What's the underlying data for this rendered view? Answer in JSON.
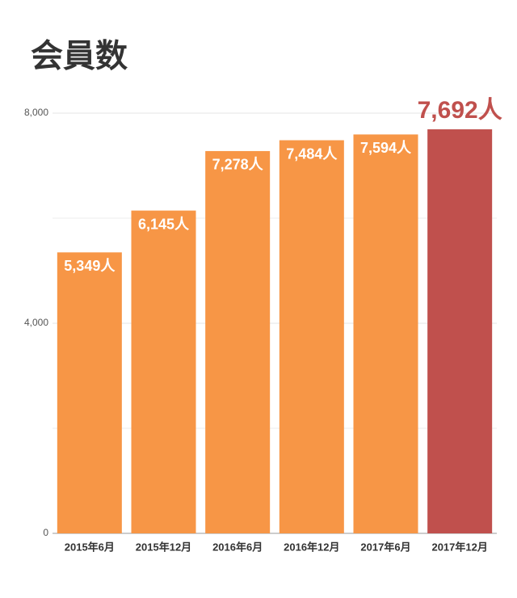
{
  "chart_data": {
    "type": "bar",
    "title": "会員数",
    "categories": [
      "2015年6月",
      "2015年12月",
      "2016年6月",
      "2016年12月",
      "2017年6月",
      "2017年12月"
    ],
    "values": [
      5349,
      6145,
      7278,
      7484,
      7594,
      7692
    ],
    "value_labels": [
      "5,349人",
      "6,145人",
      "7,278人",
      "7,484人",
      "7,594人",
      "7,692人"
    ],
    "color": "#f79646",
    "colors": [
      "#f79646",
      "#f79646",
      "#f79646",
      "#f79646",
      "#f79646",
      "#c0504d"
    ],
    "ylim": [
      0,
      8000
    ],
    "yticks": [
      0,
      {
        "value": 4000,
        "label": "4,000"
      },
      {
        "value": 8000,
        "label": "8,000"
      }
    ],
    "minor_grid": [
      2000,
      6000
    ],
    "grid": true
  }
}
